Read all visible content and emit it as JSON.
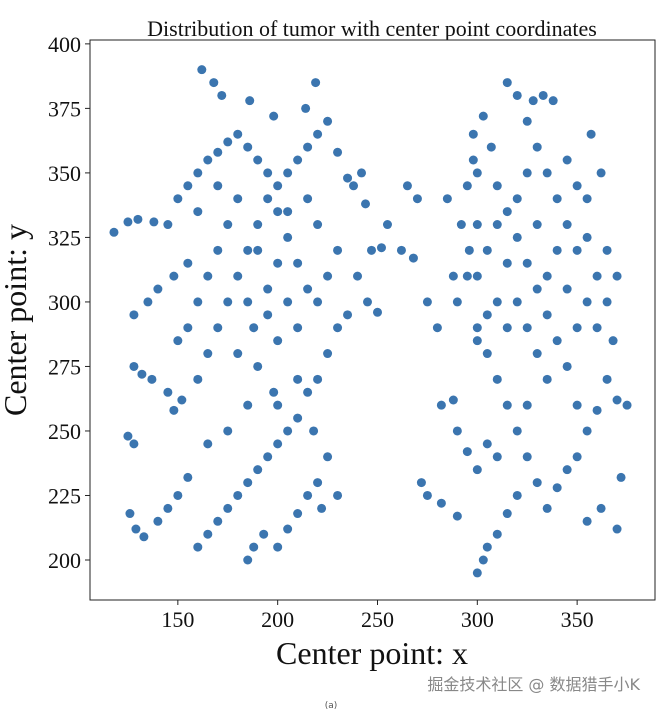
{
  "chart_data": {
    "type": "scatter",
    "title": "Distribution of tumor with center point coordinates",
    "x_label": "Center point: x",
    "y_label": "Center point: y",
    "color": "#3b75af",
    "xlim": [
      106,
      389
    ],
    "ylim": [
      184.5,
      401.5
    ],
    "xticks": [
      150,
      200,
      250,
      300,
      350
    ],
    "yticks": [
      200,
      225,
      250,
      275,
      300,
      325,
      350,
      375,
      400
    ],
    "grid": false,
    "x": [
      118,
      125,
      130,
      138,
      145,
      128,
      135,
      140,
      148,
      155,
      150,
      155,
      160,
      165,
      170,
      175,
      180,
      185,
      190,
      195,
      200,
      205,
      210,
      215,
      220,
      225,
      162,
      168,
      172,
      186,
      198,
      219,
      214,
      230,
      235,
      242,
      238,
      244,
      247,
      252,
      240,
      245,
      250,
      235,
      230,
      225,
      220,
      215,
      210,
      205,
      200,
      195,
      190,
      185,
      180,
      175,
      170,
      165,
      160,
      185,
      188,
      193,
      200,
      205,
      210,
      215,
      220,
      225,
      222,
      230,
      128,
      132,
      137,
      125,
      128,
      126,
      129,
      133,
      140,
      145,
      150,
      155,
      148,
      152,
      145,
      160,
      165,
      170,
      175,
      180,
      185,
      190,
      195,
      200,
      205,
      210,
      215,
      220,
      225,
      230,
      175,
      170,
      165,
      160,
      155,
      150,
      180,
      190,
      200,
      210,
      185,
      195,
      200,
      190,
      180,
      170,
      160,
      205,
      215,
      220,
      195,
      205,
      188,
      198,
      185,
      175,
      165,
      210,
      218,
      200,
      255,
      262,
      268,
      275,
      280,
      272,
      275,
      282,
      290,
      282,
      288,
      265,
      270,
      296,
      300,
      295,
      290,
      300,
      305,
      310,
      315,
      320,
      325,
      330,
      335,
      340,
      345,
      350,
      355,
      360,
      365,
      370,
      375,
      372,
      370,
      362,
      355,
      300,
      303,
      305,
      310,
      315,
      320,
      290,
      295,
      300,
      305,
      310,
      298,
      300,
      303,
      307,
      310,
      315,
      320,
      325,
      330,
      335,
      340,
      345,
      350,
      355,
      360,
      365,
      370,
      360,
      350,
      345,
      340,
      335,
      330,
      325,
      320,
      315,
      328,
      333,
      338,
      357,
      362,
      355,
      300,
      305,
      310,
      315,
      320,
      325,
      330,
      335,
      340,
      345,
      320,
      325,
      330,
      335,
      325,
      315,
      310,
      305,
      300,
      350,
      288,
      292,
      285,
      295,
      298,
      345,
      350,
      355,
      365,
      368
    ],
    "y": [
      327,
      331,
      332,
      331,
      330,
      295,
      300,
      305,
      310,
      315,
      340,
      345,
      350,
      355,
      358,
      362,
      365,
      360,
      355,
      350,
      345,
      350,
      355,
      360,
      365,
      370,
      390,
      385,
      380,
      378,
      372,
      385,
      375,
      358,
      348,
      350,
      345,
      338,
      320,
      321,
      310,
      300,
      296,
      295,
      290,
      280,
      270,
      265,
      255,
      250,
      245,
      240,
      235,
      230,
      225,
      220,
      215,
      210,
      205,
      200,
      205,
      210,
      205,
      212,
      218,
      225,
      230,
      240,
      220,
      225,
      275,
      272,
      270,
      248,
      245,
      218,
      212,
      209,
      215,
      220,
      225,
      232,
      258,
      262,
      265,
      270,
      280,
      290,
      300,
      310,
      320,
      330,
      340,
      335,
      325,
      315,
      305,
      300,
      310,
      320,
      330,
      320,
      310,
      300,
      290,
      285,
      280,
      275,
      285,
      290,
      300,
      305,
      315,
      320,
      340,
      345,
      335,
      335,
      340,
      330,
      295,
      300,
      290,
      265,
      260,
      250,
      245,
      270,
      250,
      260,
      330,
      320,
      317,
      300,
      290,
      230,
      225,
      222,
      217,
      260,
      262,
      345,
      340,
      320,
      330,
      310,
      300,
      290,
      280,
      270,
      260,
      250,
      240,
      230,
      220,
      228,
      235,
      240,
      250,
      258,
      270,
      262,
      260,
      232,
      212,
      220,
      215,
      195,
      200,
      205,
      210,
      218,
      225,
      250,
      242,
      235,
      245,
      240,
      355,
      350,
      372,
      360,
      345,
      335,
      325,
      315,
      305,
      295,
      285,
      275,
      290,
      300,
      310,
      320,
      310,
      290,
      320,
      330,
      340,
      350,
      360,
      370,
      380,
      385,
      378,
      380,
      378,
      365,
      350,
      340,
      310,
      320,
      330,
      315,
      300,
      290,
      280,
      310,
      320,
      305,
      340,
      350,
      330,
      270,
      260,
      290,
      300,
      295,
      285,
      260,
      310,
      330,
      340,
      345,
      365,
      355,
      345,
      325,
      300,
      285
    ]
  },
  "watermark": "掘金技术社区 @ 数据猎手小K",
  "caption": "(a)"
}
